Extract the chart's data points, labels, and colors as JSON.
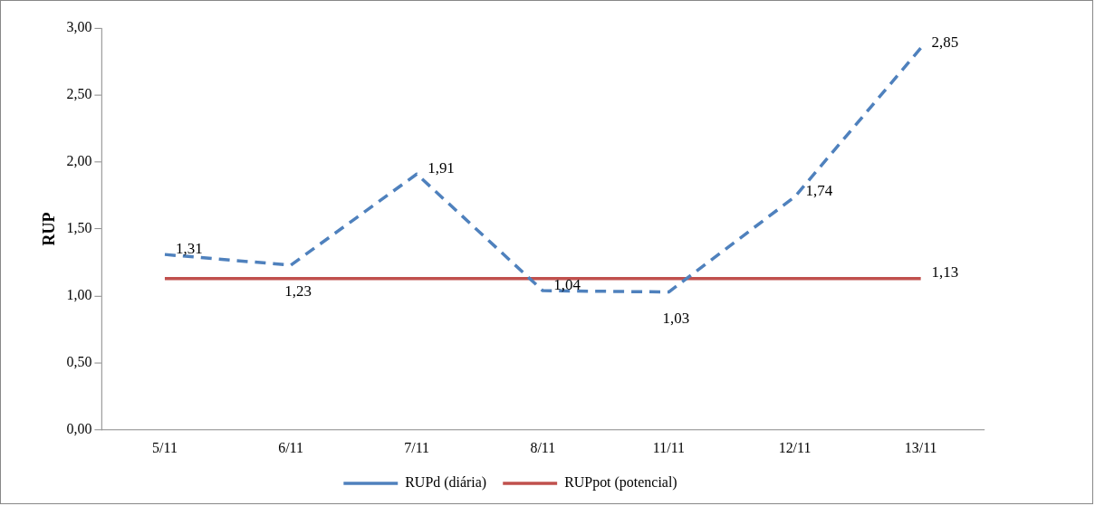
{
  "chart_data": {
    "type": "line",
    "ylabel": "RUP",
    "categories": [
      "5/11",
      "6/11",
      "7/11",
      "8/11",
      "11/11",
      "12/11",
      "13/11"
    ],
    "series": [
      {
        "name": "RUPd (diária)",
        "color": "#4f81bd",
        "line_style": "dashed",
        "values": [
          1.31,
          1.23,
          1.91,
          1.04,
          1.03,
          1.74,
          2.85
        ],
        "value_labels": [
          "1,31",
          "1,23",
          "1,91",
          "1,04",
          "1,03",
          "1,74",
          "2,85"
        ]
      },
      {
        "name": "RUPpot (potencial)",
        "color": "#c0504d",
        "line_style": "solid",
        "values": [
          1.13,
          1.13,
          1.13,
          1.13,
          1.13,
          1.13,
          1.13
        ],
        "value_labels": [
          null,
          null,
          null,
          null,
          null,
          null,
          "1,13"
        ]
      }
    ],
    "ylim": [
      0,
      3
    ],
    "yticks": [
      {
        "value": 0,
        "label": "0,00"
      },
      {
        "value": 0.5,
        "label": "0,50"
      },
      {
        "value": 1,
        "label": "1,00"
      },
      {
        "value": 1.5,
        "label": "1,50"
      },
      {
        "value": 2,
        "label": "2,00"
      },
      {
        "value": 2.5,
        "label": "2,50"
      },
      {
        "value": 3,
        "label": "3,00"
      }
    ],
    "grid": false,
    "legend": "bottom",
    "marker": "none"
  }
}
